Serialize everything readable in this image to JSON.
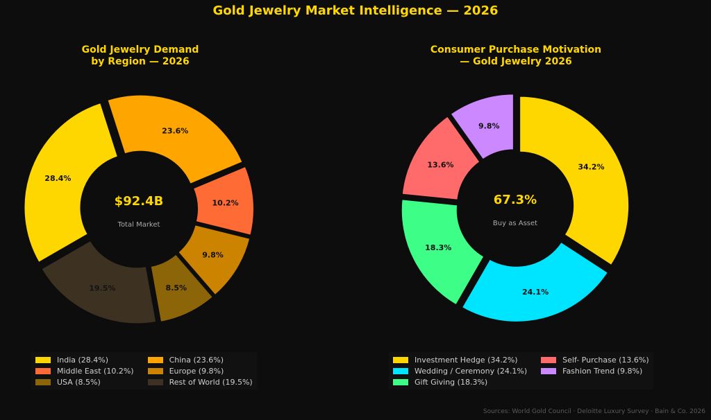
{
  "title": "Gold Jewelry Market Intelligence — 2026",
  "source": "Sources: World Gold Council · Deloitte Luxury Survey · Bain & Co. 2026",
  "chart_data": [
    {
      "type": "pie",
      "donut": true,
      "title": "Gold Jewelry Demand\nby Region — 2026",
      "center_value": "$92.4B",
      "center_label": "Total Market",
      "categories": [
        "India",
        "China",
        "Middle East",
        "Europe",
        "USA",
        "Rest of World"
      ],
      "values": [
        28.4,
        23.6,
        10.2,
        9.8,
        8.5,
        19.5
      ],
      "value_labels": [
        "28.4%",
        "23.6%",
        "10.2%",
        "9.8%",
        "8.5%",
        "19.5%"
      ],
      "colors": [
        "#ffd700",
        "#ffa500",
        "#ff6b35",
        "#cc8400",
        "#8b6508",
        "#3d3222"
      ],
      "legend": [
        "India (28.4%)",
        "China (23.6%)",
        "Middle East (10.2%)",
        "Europe (9.8%)",
        "USA (8.5%)",
        "Rest of World (19.5%)"
      ],
      "legend_placement": "bottom"
    },
    {
      "type": "pie",
      "donut": true,
      "title": "Consumer Purchase Motivation\n— Gold Jewelry 2026",
      "center_value": "67.3%",
      "center_label": "Buy as Asset",
      "categories": [
        "Investment Hedge",
        "Wedding / Ceremony",
        "Gift Giving",
        "Self- Purchase",
        "Fashion Trend"
      ],
      "values": [
        34.2,
        24.1,
        18.3,
        13.6,
        9.8
      ],
      "value_labels": [
        "34.2%",
        "24.1%",
        "18.3%",
        "13.6%",
        "9.8%"
      ],
      "colors": [
        "#ffd700",
        "#00e5ff",
        "#3dff88",
        "#ff6b6b",
        "#cc88ff"
      ],
      "legend": [
        "Investment Hedge (34.2%)",
        "Wedding / Ceremony (24.1%)",
        "Gift Giving (18.3%)",
        "Self- Purchase (13.6%)",
        "Fashion Trend (9.8%)"
      ],
      "legend_placement": "bottom"
    }
  ]
}
